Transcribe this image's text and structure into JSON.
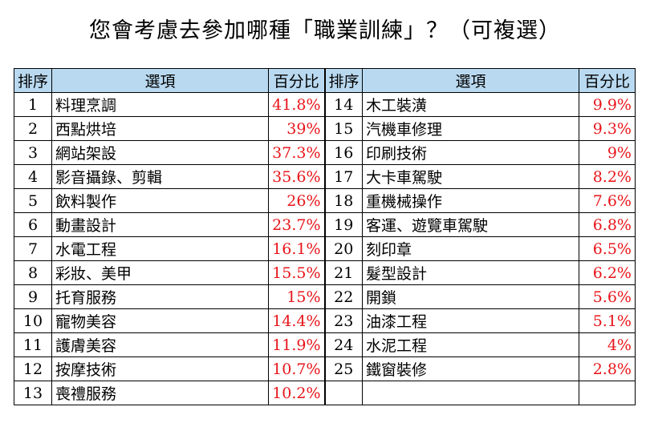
{
  "title": "您會考慮去參加哪種「職業訓練」？（可複選）",
  "headers": {
    "rank": "排序",
    "item": "選項",
    "percent": "百分比"
  },
  "colors": {
    "header_bg": "#b9d9f0",
    "percent_text": "#e8151b"
  },
  "rows": [
    {
      "left": {
        "rank": "1",
        "item": "料理烹調",
        "percent": "41.8%"
      },
      "right": {
        "rank": "14",
        "item": "木工裝潢",
        "percent": "9.9%"
      }
    },
    {
      "left": {
        "rank": "2",
        "item": "西點烘培",
        "percent": "39%"
      },
      "right": {
        "rank": "15",
        "item": "汽機車修理",
        "percent": "9.3%"
      }
    },
    {
      "left": {
        "rank": "3",
        "item": "網站架設",
        "percent": "37.3%"
      },
      "right": {
        "rank": "16",
        "item": "印刷技術",
        "percent": "9%"
      }
    },
    {
      "left": {
        "rank": "4",
        "item": "影音攝錄、剪輯",
        "percent": "35.6%"
      },
      "right": {
        "rank": "17",
        "item": "大卡車駕駛",
        "percent": "8.2%"
      }
    },
    {
      "left": {
        "rank": "5",
        "item": "飲料製作",
        "percent": "26%"
      },
      "right": {
        "rank": "18",
        "item": "重機械操作",
        "percent": "7.6%"
      }
    },
    {
      "left": {
        "rank": "6",
        "item": "動畫設計",
        "percent": "23.7%"
      },
      "right": {
        "rank": "19",
        "item": "客運、遊覽車駕駛",
        "percent": "6.8%"
      }
    },
    {
      "left": {
        "rank": "7",
        "item": "水電工程",
        "percent": "16.1%"
      },
      "right": {
        "rank": "20",
        "item": "刻印章",
        "percent": "6.5%"
      }
    },
    {
      "left": {
        "rank": "8",
        "item": "彩妝、美甲",
        "percent": "15.5%"
      },
      "right": {
        "rank": "21",
        "item": "髮型設計",
        "percent": "6.2%"
      }
    },
    {
      "left": {
        "rank": "9",
        "item": "托育服務",
        "percent": "15%"
      },
      "right": {
        "rank": "22",
        "item": "開鎖",
        "percent": "5.6%"
      }
    },
    {
      "left": {
        "rank": "10",
        "item": "寵物美容",
        "percent": "14.4%"
      },
      "right": {
        "rank": "23",
        "item": "油漆工程",
        "percent": "5.1%"
      }
    },
    {
      "left": {
        "rank": "11",
        "item": "護膚美容",
        "percent": "11.9%"
      },
      "right": {
        "rank": "24",
        "item": "水泥工程",
        "percent": "4%"
      }
    },
    {
      "left": {
        "rank": "12",
        "item": "按摩技術",
        "percent": "10.7%"
      },
      "right": {
        "rank": "25",
        "item": "鐵窗裝修",
        "percent": "2.8%"
      }
    },
    {
      "left": {
        "rank": "13",
        "item": "喪禮服務",
        "percent": "10.2%"
      },
      "right": {
        "rank": "",
        "item": "",
        "percent": ""
      }
    }
  ]
}
